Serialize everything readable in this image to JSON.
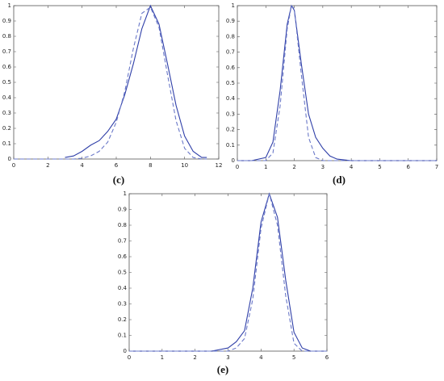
{
  "chart_data": [
    {
      "type": "line",
      "label": "(c)",
      "x": [
        0,
        1,
        2,
        3,
        3.5,
        4,
        4.5,
        5,
        5.5,
        6,
        6.5,
        7,
        7.5,
        8,
        8.5,
        9,
        9.5,
        10,
        10.5,
        11,
        11.3
      ],
      "series": [
        {
          "style": "solid",
          "color": "#2f3fa8",
          "values": [
            null,
            null,
            null,
            0.01,
            0.02,
            0.05,
            0.09,
            0.12,
            0.18,
            0.26,
            0.42,
            0.62,
            0.85,
            1.0,
            0.88,
            0.62,
            0.35,
            0.15,
            0.05,
            0.01,
            0.01
          ]
        },
        {
          "style": "dashed",
          "color": "#6a78c8",
          "values": [
            0,
            0,
            0,
            0,
            0,
            0.005,
            0.02,
            0.05,
            0.11,
            0.24,
            0.44,
            0.72,
            0.95,
            0.99,
            0.86,
            0.55,
            0.25,
            0.07,
            0.01,
            0,
            0
          ]
        }
      ],
      "xlim": [
        0,
        12
      ],
      "xticks": [
        0,
        2,
        4,
        6,
        8,
        10,
        12
      ],
      "ylim": [
        0,
        1
      ],
      "yticks": [
        0,
        0.1,
        0.2,
        0.3,
        0.4,
        0.5,
        0.6,
        0.7,
        0.8,
        0.9,
        1
      ]
    },
    {
      "type": "line",
      "label": "(d)",
      "x": [
        0,
        0.5,
        1,
        1.25,
        1.5,
        1.75,
        1.9,
        2,
        2.25,
        2.5,
        2.75,
        3,
        3.25,
        3.5,
        4,
        5,
        6,
        7
      ],
      "series": [
        {
          "style": "solid",
          "color": "#2f3fa8",
          "values": [
            0,
            0,
            0.02,
            0.12,
            0.45,
            0.88,
            1.0,
            0.97,
            0.62,
            0.3,
            0.15,
            0.08,
            0.03,
            0.01,
            0,
            0,
            0,
            0
          ]
        },
        {
          "style": "dashed",
          "color": "#6a78c8",
          "values": [
            0,
            0,
            0,
            0.05,
            0.35,
            0.85,
            1.0,
            0.98,
            0.55,
            0.15,
            0.02,
            0,
            0,
            0,
            0,
            0,
            0,
            0
          ]
        }
      ],
      "xlim": [
        0,
        7
      ],
      "xticks": [
        0,
        1,
        2,
        3,
        4,
        5,
        6,
        7
      ],
      "ylim": [
        0,
        1
      ],
      "yticks": [
        0,
        0.1,
        0.2,
        0.3,
        0.4,
        0.5,
        0.6,
        0.7,
        0.8,
        0.9,
        1
      ]
    },
    {
      "type": "line",
      "label": "(e)",
      "x": [
        0,
        1,
        2,
        2.5,
        3,
        3.25,
        3.5,
        3.75,
        4,
        4.25,
        4.5,
        4.75,
        5,
        5.25,
        5.5,
        6
      ],
      "series": [
        {
          "style": "solid",
          "color": "#2f3fa8",
          "values": [
            0,
            0,
            0,
            0,
            0.02,
            0.06,
            0.13,
            0.4,
            0.82,
            1.0,
            0.85,
            0.45,
            0.12,
            0.02,
            0,
            0
          ]
        },
        {
          "style": "dashed",
          "color": "#6a78c8",
          "values": [
            0,
            0,
            0,
            0,
            0,
            0.02,
            0.08,
            0.33,
            0.78,
            1.0,
            0.8,
            0.35,
            0.05,
            0,
            0,
            0
          ]
        }
      ],
      "xlim": [
        0,
        6
      ],
      "xticks": [
        0,
        1,
        2,
        3,
        4,
        5,
        6
      ],
      "ylim": [
        0,
        1
      ],
      "yticks": [
        0,
        0.1,
        0.2,
        0.3,
        0.4,
        0.5,
        0.6,
        0.7,
        0.8,
        0.9,
        1
      ]
    }
  ]
}
